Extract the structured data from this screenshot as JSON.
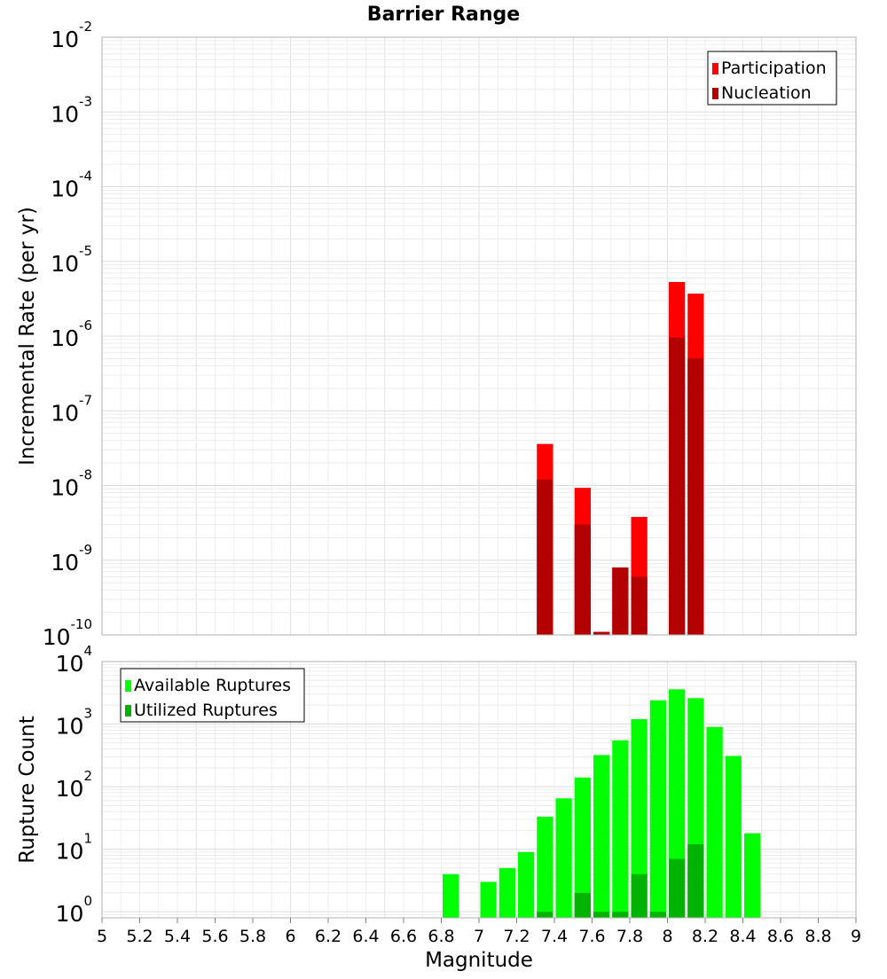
{
  "chart_data": [
    {
      "type": "bar",
      "title": "Barrier Range",
      "xlabel": "Magnitude",
      "ylabel": "Incremental Rate (per yr)",
      "xlim": [
        5,
        9
      ],
      "ylim": [
        1e-10,
        0.01
      ],
      "y_scale": "log",
      "grid": true,
      "legend_position": "top-right",
      "x_ticks": [
        "5",
        "5.2",
        "5.4",
        "5.6",
        "5.8",
        "6",
        "6.2",
        "6.4",
        "6.6",
        "6.8",
        "7",
        "7.2",
        "7.4",
        "7.6",
        "7.8",
        "8",
        "8.2",
        "8.4",
        "8.6",
        "8.8",
        "9"
      ],
      "y_ticks": [
        {
          "value": 1e-10,
          "base": "10",
          "exp": "-10"
        },
        {
          "value": 1e-09,
          "base": "10",
          "exp": "-9"
        },
        {
          "value": 1e-08,
          "base": "10",
          "exp": "-8"
        },
        {
          "value": 1e-07,
          "base": "10",
          "exp": "-7"
        },
        {
          "value": 1e-06,
          "base": "10",
          "exp": "-6"
        },
        {
          "value": 1e-05,
          "base": "10",
          "exp": "-5"
        },
        {
          "value": 0.0001,
          "base": "10",
          "exp": "-4"
        },
        {
          "value": 0.001,
          "base": "10",
          "exp": "-3"
        },
        {
          "value": 0.01,
          "base": "10",
          "exp": "-2"
        }
      ],
      "series": [
        {
          "name": "Participation",
          "color": "#ff0000",
          "x": [
            7.35,
            7.55,
            7.65,
            7.75,
            7.85,
            8.05,
            8.15
          ],
          "values": [
            3.6e-08,
            9.3e-09,
            1.1e-10,
            8e-10,
            3.8e-09,
            5.3e-06,
            3.7e-06
          ]
        },
        {
          "name": "Nucleation",
          "color": "#b30000",
          "x": [
            7.35,
            7.55,
            7.65,
            7.75,
            7.85,
            8.05,
            8.15
          ],
          "values": [
            1.2e-08,
            3e-09,
            1.1e-10,
            8e-10,
            6e-10,
            9.5e-07,
            5e-07
          ]
        }
      ]
    },
    {
      "type": "bar",
      "xlabel": "Magnitude",
      "ylabel": "Rupture Count",
      "xlim": [
        5,
        9
      ],
      "ylim": [
        0.8,
        10000
      ],
      "y_scale": "log",
      "grid": true,
      "legend_position": "top-left",
      "y_ticks": [
        {
          "value": 1,
          "base": "10",
          "exp": "0"
        },
        {
          "value": 10,
          "base": "10",
          "exp": "1"
        },
        {
          "value": 100,
          "base": "10",
          "exp": "2"
        },
        {
          "value": 1000,
          "base": "10",
          "exp": "3"
        },
        {
          "value": 10000,
          "base": "10",
          "exp": "4"
        }
      ],
      "series": [
        {
          "name": "Available Ruptures",
          "color": "#00ff00",
          "x": [
            6.85,
            7.05,
            7.15,
            7.25,
            7.35,
            7.45,
            7.55,
            7.65,
            7.75,
            7.85,
            7.95,
            8.05,
            8.15,
            8.25,
            8.35,
            8.45
          ],
          "values": [
            4,
            3,
            5,
            9,
            33,
            65,
            140,
            320,
            550,
            1200,
            2400,
            3600,
            2600,
            900,
            310,
            18
          ]
        },
        {
          "name": "Utilized Ruptures",
          "color": "#00b300",
          "x": [
            7.35,
            7.55,
            7.65,
            7.75,
            7.85,
            7.95,
            8.05,
            8.15
          ],
          "values": [
            1,
            2,
            1,
            1,
            4,
            1,
            7,
            12
          ]
        }
      ]
    }
  ]
}
